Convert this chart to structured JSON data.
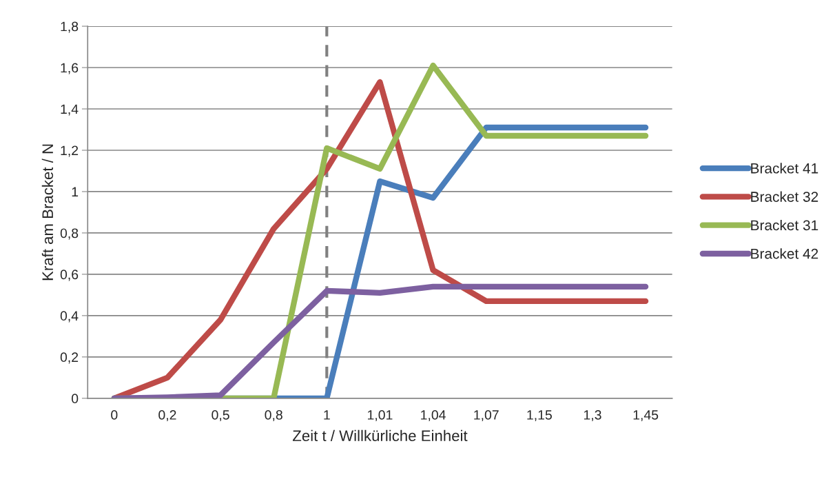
{
  "chart_data": {
    "type": "line",
    "xlabel": "Zeit t / Willkürliche Einheit",
    "ylabel": "Kraft am Bracket / N",
    "categories": [
      "0",
      "0,2",
      "0,5",
      "0,8",
      "1",
      "1,01",
      "1,04",
      "1,07",
      "1,15",
      "1,3",
      "1,45"
    ],
    "series": [
      {
        "name": "Bracket 41",
        "color": "#4a7ebb",
        "values": [
          0,
          0,
          0,
          0,
          0,
          1.05,
          0.97,
          1.31,
          1.31,
          1.31,
          1.31
        ]
      },
      {
        "name": "Bracket 32",
        "color": "#be4b48",
        "values": [
          0,
          0.1,
          0.38,
          0.82,
          1.11,
          1.53,
          0.62,
          0.47,
          0.47,
          0.47,
          0.47
        ]
      },
      {
        "name": "Bracket 31",
        "color": "#98b954",
        "values": [
          0,
          0,
          0,
          0,
          1.21,
          1.11,
          1.61,
          1.27,
          1.27,
          1.27,
          1.27
        ]
      },
      {
        "name": "Bracket 42",
        "color": "#7d60a0",
        "values": [
          0,
          0.005,
          0.015,
          0.27,
          0.52,
          0.51,
          0.54,
          0.54,
          0.54,
          0.54,
          0.54
        ]
      }
    ],
    "ylim": [
      0,
      1.8
    ],
    "yticks": [
      0,
      {
        "value": 0.2,
        "label": "0,2"
      },
      {
        "value": 0.4,
        "label": "0,4"
      },
      {
        "value": 0.6,
        "label": "0,6"
      },
      {
        "value": 0.8,
        "label": "0,8"
      },
      1,
      {
        "value": 1.2,
        "label": "1,2"
      },
      {
        "value": 1.4,
        "label": "1,4"
      },
      {
        "value": 1.6,
        "label": "1,6"
      },
      {
        "value": 1.8,
        "label": "1,8"
      }
    ],
    "ref_lines": [
      {
        "axis": "x",
        "value": "1",
        "color": "#808080",
        "line_style": "dashed"
      }
    ],
    "grid": "y",
    "legend": "right",
    "marker": "none",
    "line_style": "solid"
  }
}
